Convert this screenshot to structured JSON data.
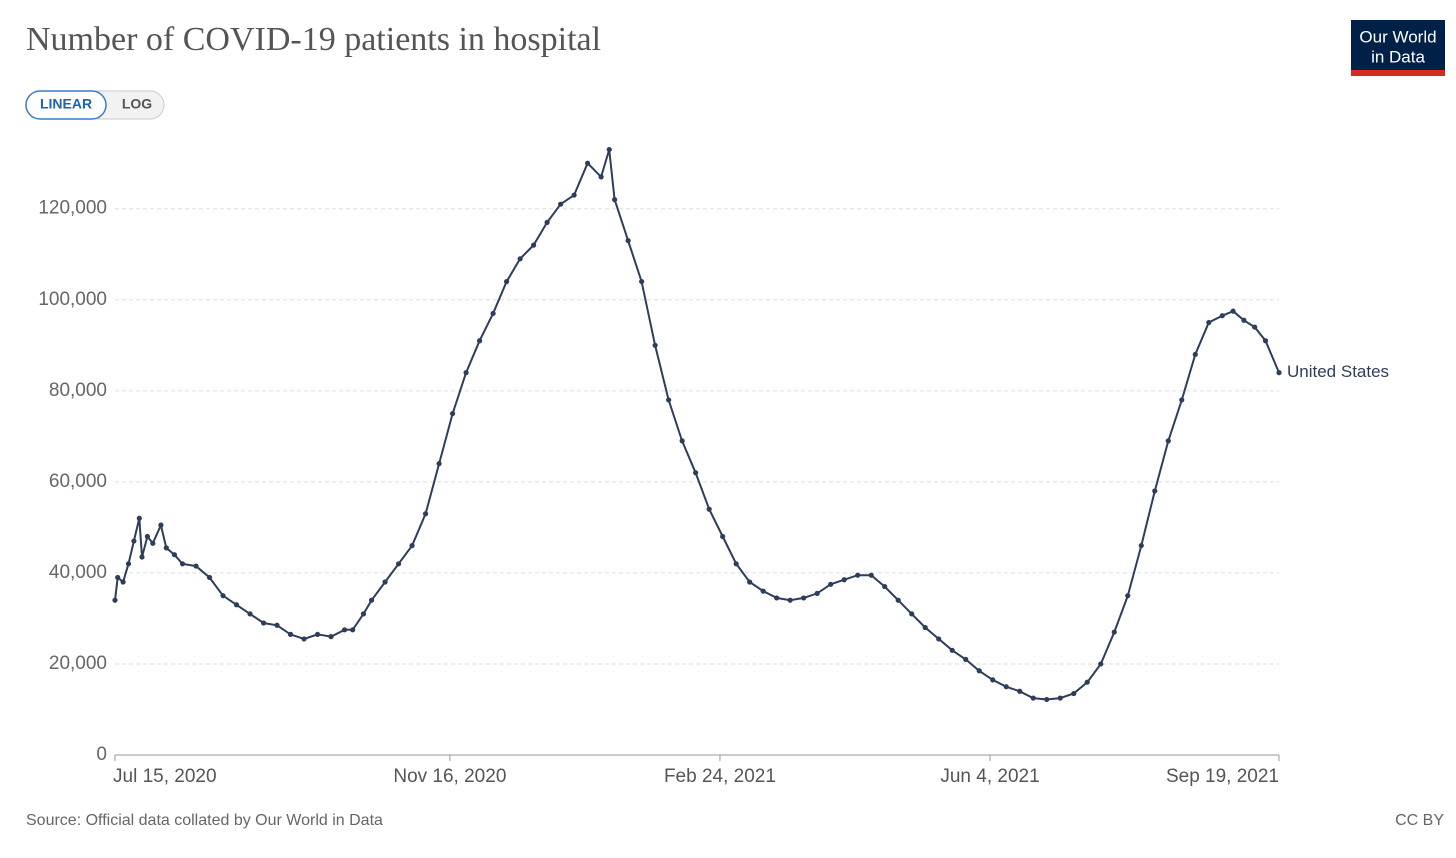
{
  "chart_data": {
    "type": "line",
    "title": "Number of COVID-19 patients in hospital",
    "scale_options": [
      "LINEAR",
      "LOG"
    ],
    "active_scale": "LINEAR",
    "logo": [
      "Our World",
      "in Data"
    ],
    "source": "Source: Official data collated by Our World in Data",
    "license": "CC BY",
    "x": [
      "2020-07-15",
      "2020-07-16",
      "2020-07-18",
      "2020-07-20",
      "2020-07-22",
      "2020-07-24",
      "2020-07-25",
      "2020-07-27",
      "2020-07-29",
      "2020-08-01",
      "2020-08-03",
      "2020-08-06",
      "2020-08-09",
      "2020-08-14",
      "2020-08-19",
      "2020-08-24",
      "2020-08-29",
      "2020-09-03",
      "2020-09-08",
      "2020-09-13",
      "2020-09-18",
      "2020-09-23",
      "2020-09-28",
      "2020-10-03",
      "2020-10-08",
      "2020-10-11",
      "2020-10-15",
      "2020-10-18",
      "2020-10-23",
      "2020-10-28",
      "2020-11-02",
      "2020-11-07",
      "2020-11-12",
      "2020-11-17",
      "2020-11-22",
      "2020-11-27",
      "2020-12-02",
      "2020-12-07",
      "2020-12-12",
      "2020-12-17",
      "2020-12-22",
      "2020-12-27",
      "2021-01-01",
      "2021-01-06",
      "2021-01-11",
      "2021-01-14",
      "2021-01-16",
      "2021-01-21",
      "2021-01-26",
      "2021-01-31",
      "2021-02-05",
      "2021-02-10",
      "2021-02-15",
      "2021-02-20",
      "2021-02-25",
      "2021-03-02",
      "2021-03-07",
      "2021-03-12",
      "2021-03-17",
      "2021-03-22",
      "2021-03-27",
      "2021-04-01",
      "2021-04-06",
      "2021-04-11",
      "2021-04-16",
      "2021-04-21",
      "2021-04-26",
      "2021-05-01",
      "2021-05-06",
      "2021-05-11",
      "2021-05-16",
      "2021-05-21",
      "2021-05-26",
      "2021-05-31",
      "2021-06-05",
      "2021-06-10",
      "2021-06-15",
      "2021-06-20",
      "2021-06-25",
      "2021-06-30",
      "2021-07-05",
      "2021-07-10",
      "2021-07-15",
      "2021-07-20",
      "2021-07-25",
      "2021-07-30",
      "2021-08-04",
      "2021-08-09",
      "2021-08-14",
      "2021-08-19",
      "2021-08-24",
      "2021-08-29",
      "2021-09-02",
      "2021-09-06",
      "2021-09-10",
      "2021-09-14",
      "2021-09-19"
    ],
    "series": [
      {
        "name": "United States",
        "color": "#2d3e5a",
        "values": [
          34000,
          39000,
          38000,
          42000,
          47000,
          52000,
          43500,
          48000,
          46500,
          50500,
          45500,
          44000,
          42000,
          41500,
          39000,
          35000,
          33000,
          31000,
          29000,
          28500,
          26500,
          25500,
          26500,
          26000,
          27500,
          27500,
          31000,
          34000,
          38000,
          42000,
          46000,
          53000,
          64000,
          75000,
          84000,
          91000,
          97000,
          104000,
          109000,
          112000,
          117000,
          121000,
          123000,
          130000,
          127000,
          133000,
          122000,
          113000,
          104000,
          90000,
          78000,
          69000,
          62000,
          54000,
          48000,
          42000,
          38000,
          36000,
          34500,
          34000,
          34500,
          35500,
          37500,
          38500,
          39500,
          39500,
          37000,
          34000,
          31000,
          28000,
          25500,
          23000,
          21000,
          18500,
          16500,
          15000,
          14000,
          12500,
          12200,
          12500,
          13500,
          16000,
          20000,
          27000,
          35000,
          46000,
          58000,
          69000,
          78000,
          88000,
          95000,
          96500,
          97500,
          95500,
          94000,
          91000,
          84000
        ]
      }
    ],
    "xlim": [
      "2020-07-15",
      "2021-09-19"
    ],
    "xticks": [
      {
        "value": "2020-07-15",
        "label": "Jul 15, 2020"
      },
      {
        "value": "2020-11-16",
        "label": "Nov 16, 2020"
      },
      {
        "value": "2021-02-24",
        "label": "Feb 24, 2021"
      },
      {
        "value": "2021-06-04",
        "label": "Jun 4, 2021"
      },
      {
        "value": "2021-09-19",
        "label": "Sep 19, 2021"
      }
    ],
    "ylim": [
      0,
      134000
    ],
    "yticks": [
      0,
      {
        "value": 20000,
        "label": "20,000"
      },
      {
        "value": 40000,
        "label": "40,000"
      },
      {
        "value": 60000,
        "label": "60,000"
      },
      {
        "value": 80000,
        "label": "80,000"
      },
      {
        "value": 100000,
        "label": "100,000"
      },
      {
        "value": 120000,
        "label": "120,000"
      }
    ],
    "grid": true
  }
}
